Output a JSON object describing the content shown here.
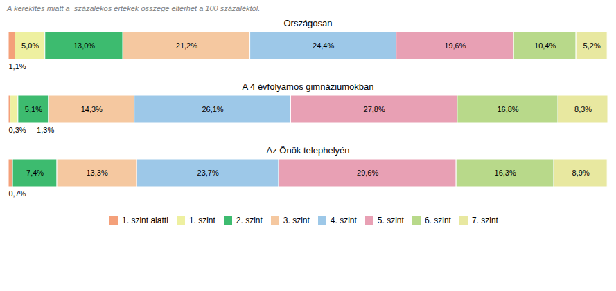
{
  "chart_data": {
    "type": "bar",
    "orientation": "horizontal",
    "stacked": true,
    "annotations": [
      "A kerekítés miatt a  százalékos értékek összege eltérhet a 100 százaléktól."
    ],
    "categories": [
      "Országosan",
      "A 4 évfolyamos gimnáziumokban",
      "Az Önök telephelyén"
    ],
    "series": [
      {
        "name": "1. szint alatti",
        "color": "#F4A07A",
        "values": [
          1.1,
          0.3,
          0.7
        ],
        "value_labels": [
          "1,1%",
          "0,3%",
          "0,7%"
        ]
      },
      {
        "name": "1. szint",
        "color": "#EEF0A0",
        "values": [
          5.0,
          1.3,
          0.0
        ],
        "value_labels": [
          "5,0%",
          "1,3%",
          null
        ]
      },
      {
        "name": "2. szint",
        "color": "#3DBB6F",
        "values": [
          13.0,
          5.1,
          7.4
        ],
        "value_labels": [
          "13,0%",
          "5,1%",
          "7,4%"
        ]
      },
      {
        "name": "3. szint",
        "color": "#F5C8A0",
        "values": [
          21.2,
          14.3,
          13.3
        ],
        "value_labels": [
          "21,2%",
          "14,3%",
          "13,3%"
        ]
      },
      {
        "name": "4. szint",
        "color": "#9DC8E8",
        "values": [
          24.4,
          26.1,
          23.7
        ],
        "value_labels": [
          "24,4%",
          "26,1%",
          "23,7%"
        ]
      },
      {
        "name": "5. szint",
        "color": "#E8A0B4",
        "values": [
          19.6,
          27.8,
          29.6
        ],
        "value_labels": [
          "19,6%",
          "27,8%",
          "29,6%"
        ]
      },
      {
        "name": "6. szint",
        "color": "#B8D98A",
        "values": [
          10.4,
          16.8,
          16.3
        ],
        "value_labels": [
          "10,4%",
          "16,8%",
          "16,3%"
        ]
      },
      {
        "name": "7. szint",
        "color": "#E8E8A0",
        "values": [
          5.2,
          8.3,
          8.9
        ],
        "value_labels": [
          "5,2%",
          "8,3%",
          "8,9%"
        ]
      }
    ],
    "xlim": [
      0,
      100
    ],
    "tick_labels": false,
    "grid": false,
    "data_labels": true,
    "legend": "bottom"
  }
}
